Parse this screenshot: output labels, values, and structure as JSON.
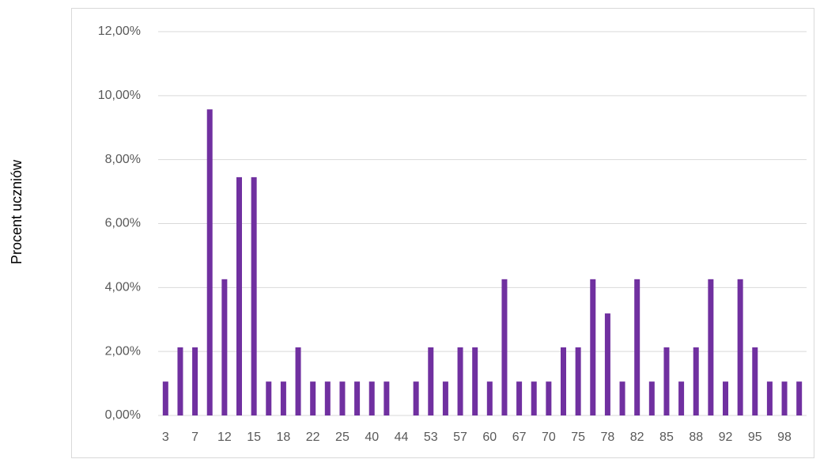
{
  "chart_data": {
    "type": "bar",
    "y_label": "Procent uczniów",
    "categories": [
      "3",
      null,
      "7",
      null,
      "12",
      null,
      "15",
      null,
      "18",
      null,
      "22",
      null,
      "25",
      null,
      "40",
      null,
      "44",
      null,
      "53",
      null,
      "57",
      null,
      "60",
      null,
      "67",
      null,
      "70",
      null,
      "75",
      null,
      "78",
      null,
      "82",
      null,
      "85",
      null,
      "88",
      null,
      "92",
      null,
      "95",
      null,
      "98",
      null
    ],
    "values": [
      1.06,
      2.13,
      2.13,
      9.57,
      4.26,
      7.45,
      7.45,
      1.06,
      1.06,
      2.13,
      1.06,
      1.06,
      1.06,
      1.06,
      1.06,
      1.06,
      0,
      1.06,
      2.13,
      1.06,
      2.13,
      2.13,
      1.06,
      4.26,
      1.06,
      1.06,
      1.06,
      2.13,
      2.13,
      4.26,
      3.19,
      1.06,
      4.26,
      1.06,
      2.13,
      1.06,
      2.13,
      4.26,
      1.06,
      4.26,
      2.13,
      1.06,
      1.06,
      1.06
    ],
    "color": "#7030a0",
    "ylim": [
      0,
      12
    ],
    "yticks": [
      {
        "value": 0,
        "label": "0,00%"
      },
      {
        "value": 2,
        "label": "2,00%"
      },
      {
        "value": 4,
        "label": "4,00%"
      },
      {
        "value": 6,
        "label": "6,00%"
      },
      {
        "value": 8,
        "label": "8,00%"
      },
      {
        "value": 10,
        "label": "10,00%"
      },
      {
        "value": 12,
        "label": "12,00%"
      }
    ],
    "grid": true
  }
}
